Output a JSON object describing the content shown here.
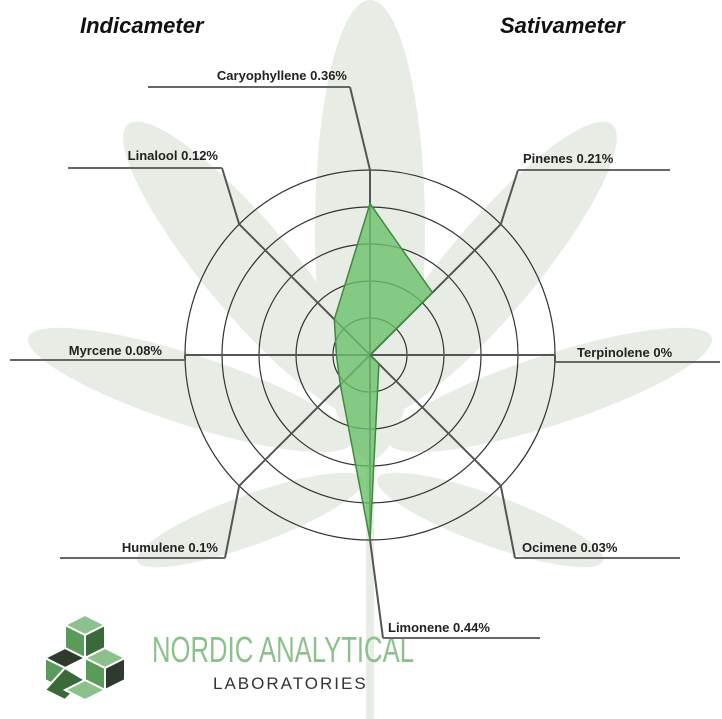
{
  "chart_data": {
    "type": "radar",
    "annotations": [
      "Indicameter",
      "Sativameter"
    ],
    "categories": [
      "Caryophyllene",
      "Pinenes",
      "Terpinolene",
      "Ocimene",
      "Limonene",
      "Humulene",
      "Myrcene",
      "Linalool"
    ],
    "values": [
      0.36,
      0.21,
      0,
      0.03,
      0.44,
      0.1,
      0.08,
      0.12
    ],
    "value_labels": [
      "0.36%",
      "0.21%",
      "0%",
      "0.03%",
      "0.44%",
      "0.1%",
      "0.08%",
      "0.12%"
    ],
    "ylim": [
      0,
      0.44
    ],
    "grid": true,
    "color": "#6cc06c"
  },
  "logo": {
    "name": "NORDIC ANALYTICAL",
    "subtitle": "LABORATORIES"
  }
}
